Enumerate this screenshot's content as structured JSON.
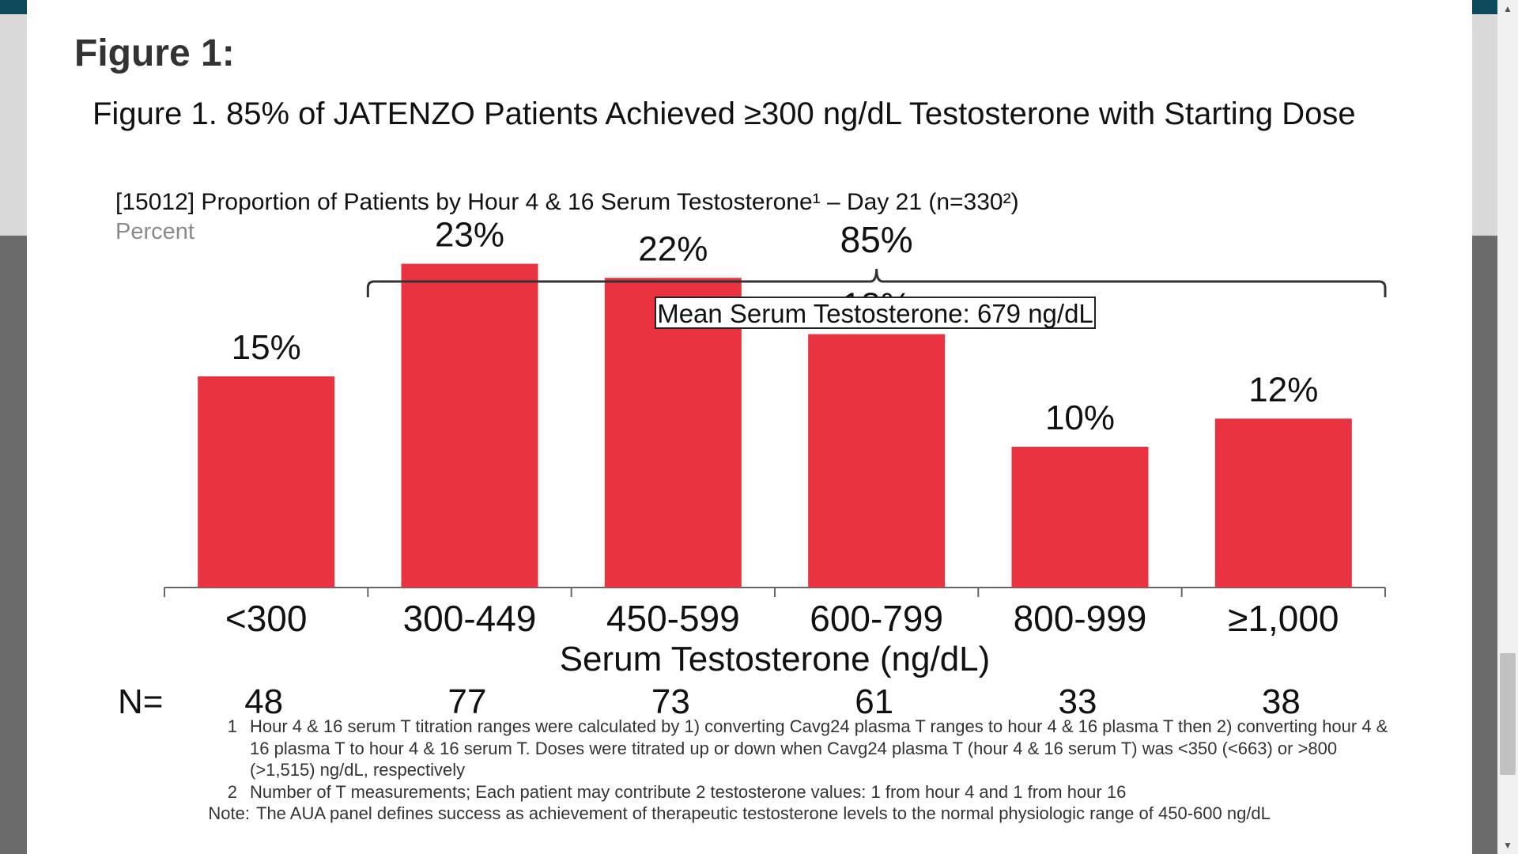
{
  "page": {
    "heading": "Figure 1:",
    "figure_caption": "Figure 1. 85% of JATENZO Patients Achieved ≥300 ng/dL Testosterone with Starting Dose"
  },
  "chart_data": {
    "type": "bar",
    "title": "[15012] Proportion of Patients by Hour 4 & 16 Serum Testosterone¹ – Day 21 (n=330²)",
    "ylabel": "Percent",
    "xlabel": "Serum Testosterone (ng/dL)",
    "categories": [
      "<300",
      "300-449",
      "450-599",
      "600-799",
      "800-999",
      "≥1,000"
    ],
    "values": [
      15,
      23,
      22,
      18,
      10,
      12
    ],
    "value_labels": [
      "15%",
      "23%",
      "22%",
      "18%",
      "10%",
      "12%"
    ],
    "ylim": [
      0,
      25
    ],
    "grid": false,
    "bar_color": "#ea3340",
    "counts_label": "N=",
    "counts": [
      "48",
      "77",
      "73",
      "61",
      "33",
      "38"
    ],
    "bracket": {
      "from_category": "300-449",
      "to_category": "≥1,000",
      "label": "85%",
      "box_label": "Mean Serum Testosterone: 679 ng/dL"
    }
  },
  "footnotes": [
    {
      "marker": "1",
      "text": "Hour 4 & 16 serum T titration ranges were calculated by 1) converting Cavg24 plasma T ranges to hour 4 & 16 plasma T then 2) converting hour 4 & 16 plasma T to hour 4 & 16 serum T. Doses were titrated up or down when Cavg24 plasma T (hour 4 & 16 serum T) was <350 (<663) or >800 (>1,515) ng/dL, respectively"
    },
    {
      "marker": "2",
      "text": "Number of T measurements; Each patient may contribute 2 testosterone values: 1 from hour 4 and 1 from hour 16"
    }
  ],
  "note": {
    "label": "Note:",
    "text": "The AUA panel defines success as achievement of therapeutic testosterone levels to the normal physiologic range of 450-600 ng/dL"
  },
  "scrollbar": {
    "up_icon": "▲",
    "down_icon": "▼"
  }
}
